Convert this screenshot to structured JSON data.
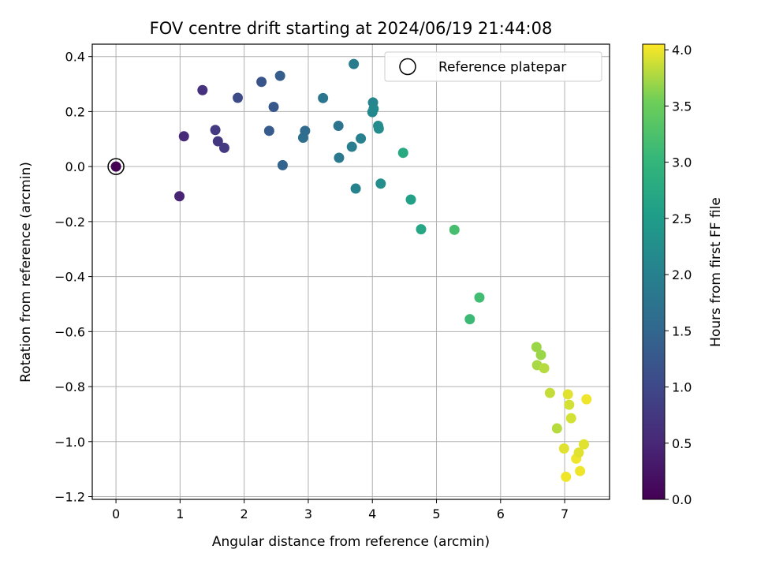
{
  "chart_data": {
    "type": "scatter",
    "title": "FOV centre drift starting at 2024/06/19 21:44:08",
    "xlabel": "Angular distance from reference (arcmin)",
    "ylabel": "Rotation from reference (arcmin)",
    "xlim": [
      -0.37,
      7.7
    ],
    "ylim": [
      -1.21,
      0.445
    ],
    "xticks": [
      0,
      1,
      2,
      3,
      4,
      5,
      6,
      7
    ],
    "yticks": [
      0.4,
      0.2,
      0.0,
      -0.2,
      -0.4,
      -0.6,
      -0.8,
      -1.0,
      -1.2
    ],
    "xtick_labels": [
      "0",
      "1",
      "2",
      "3",
      "4",
      "5",
      "6",
      "7"
    ],
    "ytick_labels": [
      "0.4",
      "0.2",
      "0.0",
      "−0.2",
      "−0.4",
      "−0.6",
      "−0.8",
      "−1.0",
      "−1.2"
    ],
    "grid": true,
    "legend": {
      "position": "top-right",
      "entries": [
        "Reference platepar"
      ]
    },
    "reference_point": {
      "x": 0.0,
      "y": 0.0
    },
    "colorbar": {
      "label": "Hours from first FF file",
      "min": 0.0,
      "max": 4.05,
      "colormap": "viridis",
      "ticks": [
        0.0,
        0.5,
        1.0,
        1.5,
        2.0,
        2.5,
        3.0,
        3.5,
        4.0
      ],
      "tick_labels": [
        "0.0",
        "0.5",
        "1.0",
        "1.5",
        "2.0",
        "2.5",
        "3.0",
        "3.5",
        "4.0"
      ]
    },
    "points": [
      {
        "x": 0.0,
        "y": 0.0,
        "c": 0.0
      },
      {
        "x": 0.99,
        "y": -0.108,
        "c": 0.45
      },
      {
        "x": 1.06,
        "y": 0.11,
        "c": 0.55
      },
      {
        "x": 1.35,
        "y": 0.278,
        "c": 0.65
      },
      {
        "x": 1.55,
        "y": 0.133,
        "c": 0.8
      },
      {
        "x": 1.59,
        "y": 0.092,
        "c": 0.75
      },
      {
        "x": 1.69,
        "y": 0.068,
        "c": 0.78
      },
      {
        "x": 1.9,
        "y": 0.25,
        "c": 1.05
      },
      {
        "x": 2.27,
        "y": 0.308,
        "c": 1.2
      },
      {
        "x": 2.39,
        "y": 0.13,
        "c": 1.3
      },
      {
        "x": 2.46,
        "y": 0.217,
        "c": 1.25
      },
      {
        "x": 2.56,
        "y": 0.33,
        "c": 1.35
      },
      {
        "x": 2.6,
        "y": 0.005,
        "c": 1.45
      },
      {
        "x": 2.92,
        "y": 0.105,
        "c": 1.65
      },
      {
        "x": 2.95,
        "y": 0.13,
        "c": 1.6
      },
      {
        "x": 3.23,
        "y": 0.249,
        "c": 1.8
      },
      {
        "x": 3.47,
        "y": 0.148,
        "c": 1.75
      },
      {
        "x": 3.48,
        "y": 0.032,
        "c": 1.85
      },
      {
        "x": 3.68,
        "y": 0.072,
        "c": 1.95
      },
      {
        "x": 3.71,
        "y": 0.373,
        "c": 1.9
      },
      {
        "x": 3.74,
        "y": -0.08,
        "c": 2.05
      },
      {
        "x": 3.82,
        "y": 0.102,
        "c": 2.0
      },
      {
        "x": 4.0,
        "y": 0.198,
        "c": 2.1
      },
      {
        "x": 4.01,
        "y": 0.233,
        "c": 2.1
      },
      {
        "x": 4.02,
        "y": 0.21,
        "c": 2.15
      },
      {
        "x": 4.09,
        "y": 0.148,
        "c": 2.2
      },
      {
        "x": 4.1,
        "y": 0.138,
        "c": 2.2
      },
      {
        "x": 4.13,
        "y": -0.062,
        "c": 2.25
      },
      {
        "x": 4.48,
        "y": 0.05,
        "c": 2.75
      },
      {
        "x": 4.6,
        "y": -0.12,
        "c": 2.6
      },
      {
        "x": 4.76,
        "y": -0.228,
        "c": 2.7
      },
      {
        "x": 5.28,
        "y": -0.23,
        "c": 3.2
      },
      {
        "x": 5.52,
        "y": -0.555,
        "c": 3.1
      },
      {
        "x": 5.67,
        "y": -0.476,
        "c": 3.15
      },
      {
        "x": 6.56,
        "y": -0.656,
        "c": 3.7
      },
      {
        "x": 6.57,
        "y": -0.722,
        "c": 3.75
      },
      {
        "x": 6.63,
        "y": -0.685,
        "c": 3.7
      },
      {
        "x": 6.68,
        "y": -0.733,
        "c": 3.8
      },
      {
        "x": 6.77,
        "y": -0.823,
        "c": 3.85
      },
      {
        "x": 6.88,
        "y": -0.952,
        "c": 3.8
      },
      {
        "x": 6.99,
        "y": -1.025,
        "c": 3.95
      },
      {
        "x": 7.02,
        "y": -1.128,
        "c": 4.0
      },
      {
        "x": 7.05,
        "y": -0.828,
        "c": 3.95
      },
      {
        "x": 7.07,
        "y": -0.866,
        "c": 3.9
      },
      {
        "x": 7.1,
        "y": -0.915,
        "c": 3.9
      },
      {
        "x": 7.18,
        "y": -1.062,
        "c": 4.0
      },
      {
        "x": 7.22,
        "y": -1.04,
        "c": 3.95
      },
      {
        "x": 7.24,
        "y": -1.107,
        "c": 4.0
      },
      {
        "x": 7.3,
        "y": -1.01,
        "c": 3.95
      },
      {
        "x": 7.34,
        "y": -0.846,
        "c": 4.0
      }
    ]
  }
}
